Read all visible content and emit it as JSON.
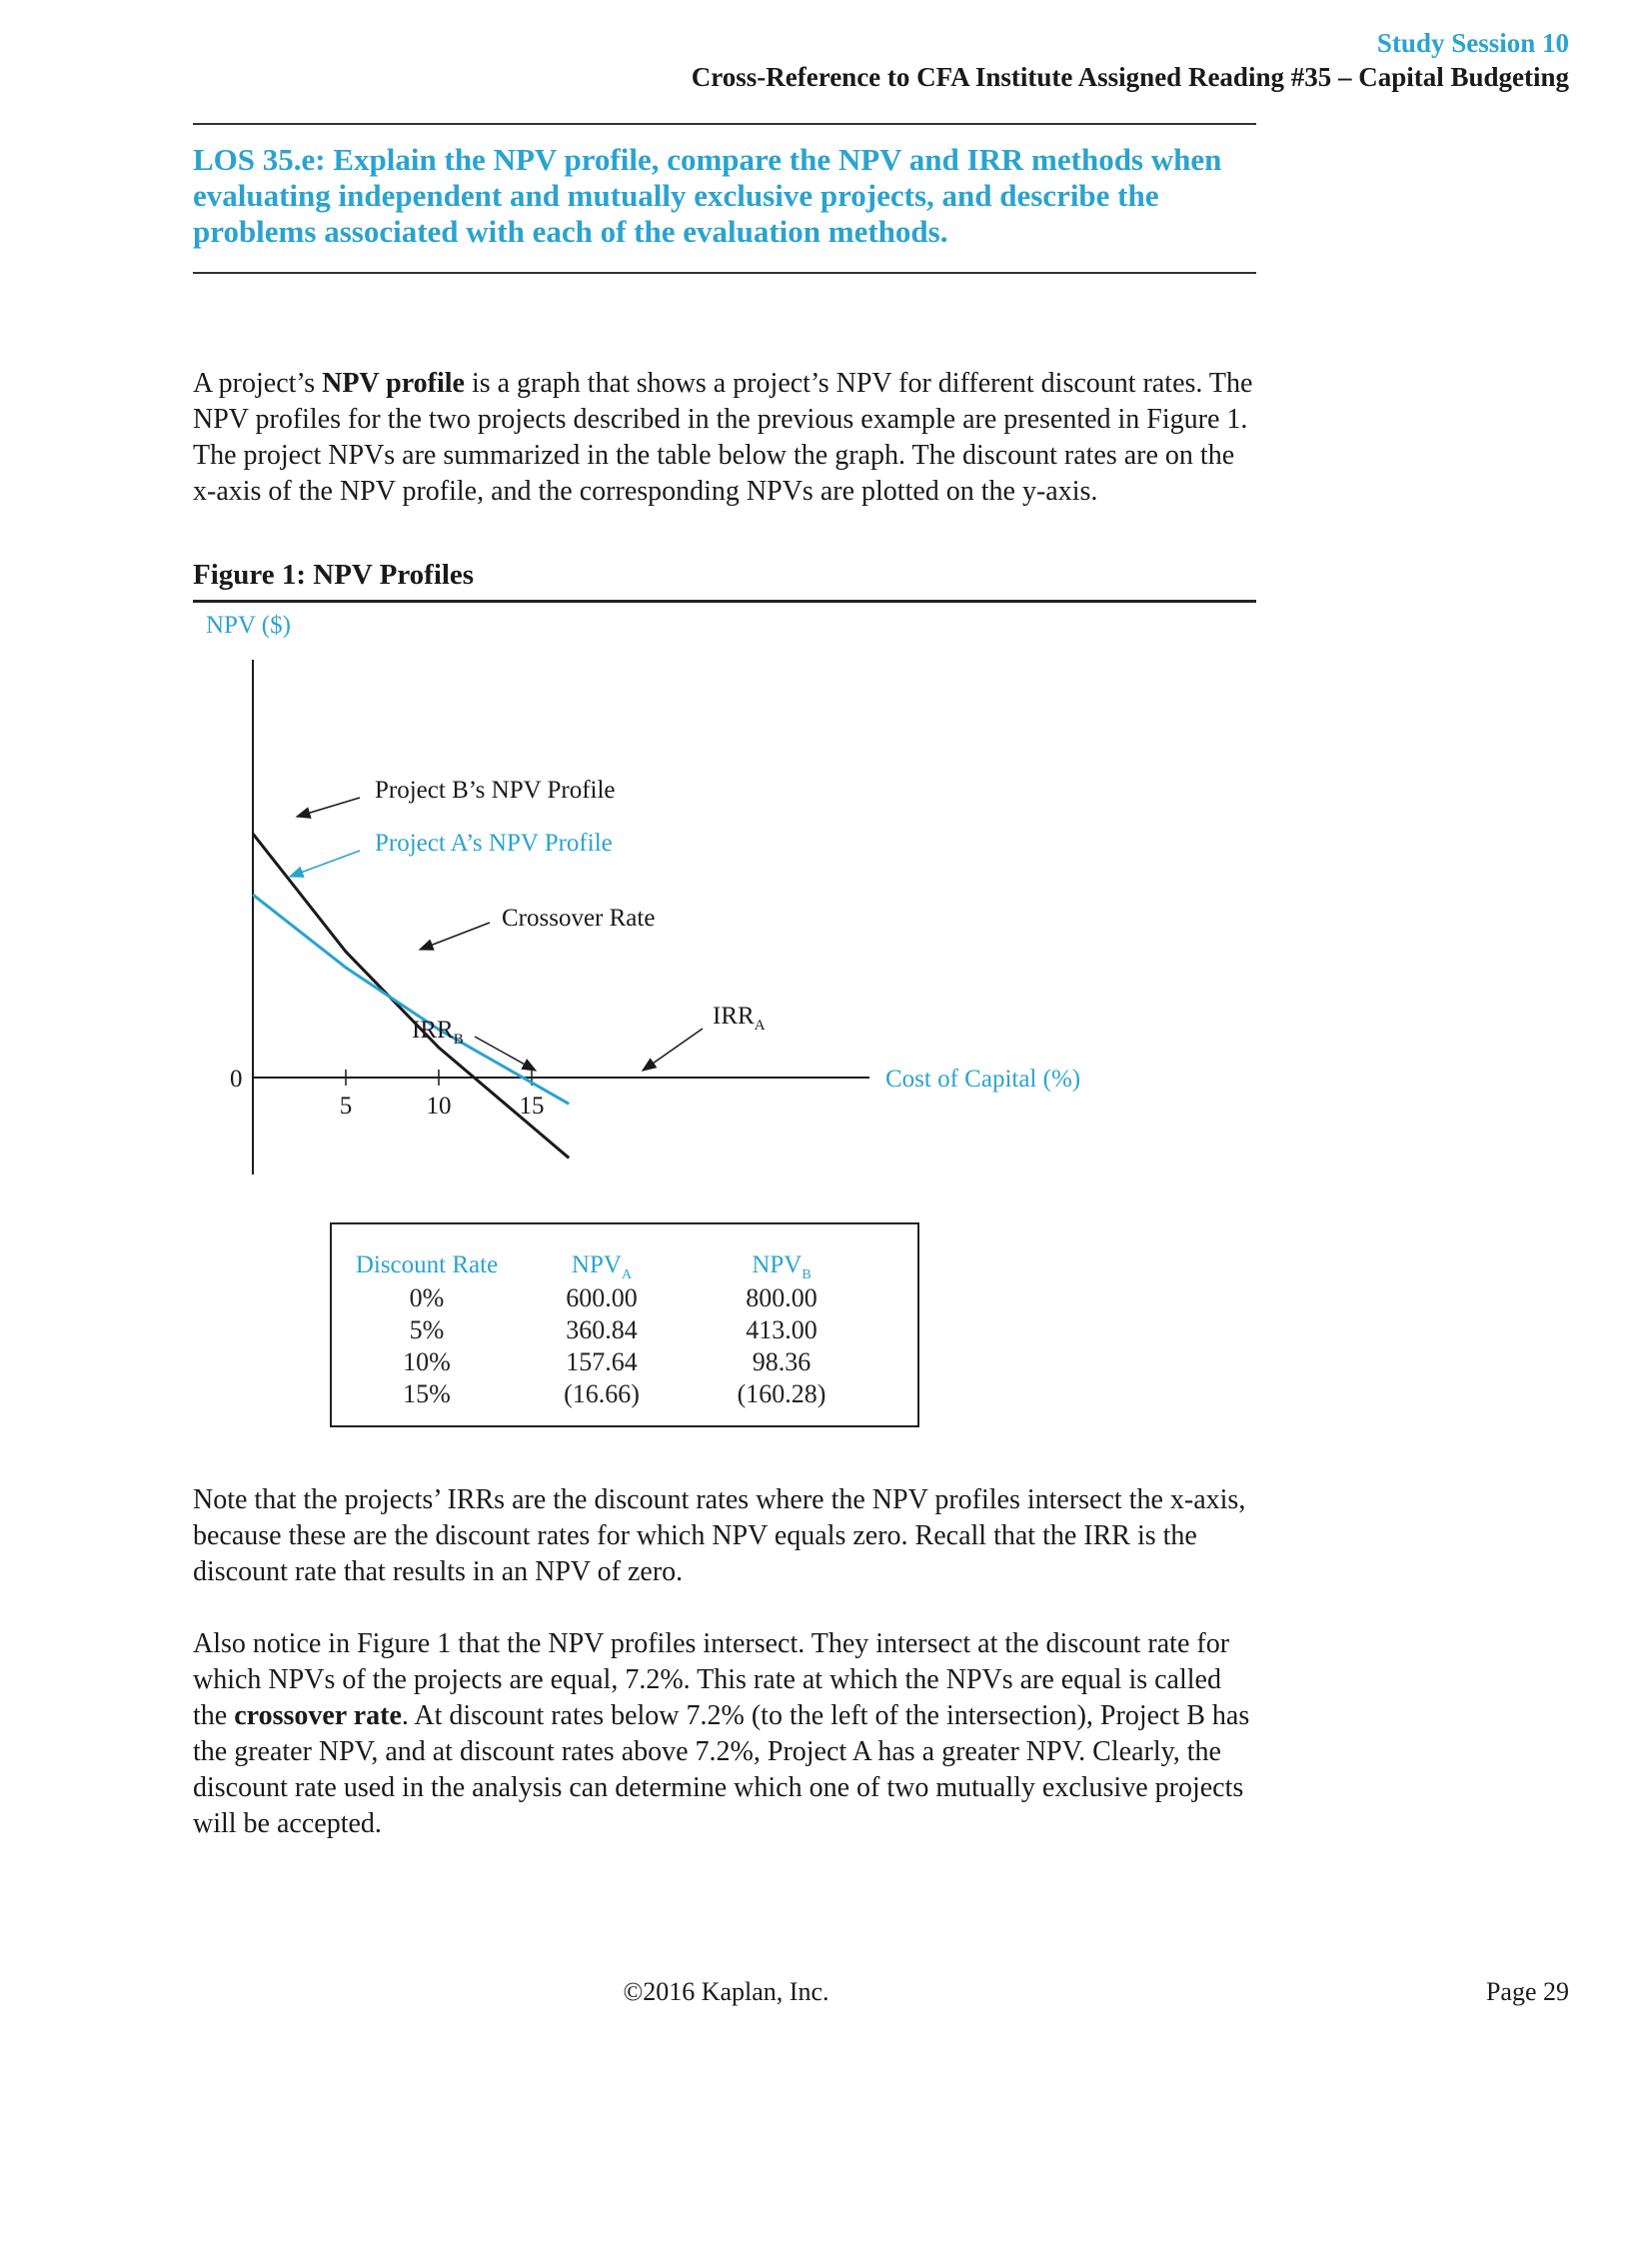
{
  "header": {
    "session": "Study Session 10",
    "reference": "Cross-Reference to CFA Institute Assigned Reading #35 – Capital Budgeting"
  },
  "los": "LOS 35.e: Explain the NPV profile, compare the NPV and IRR methods when evaluating independent and mutually exclusive projects, and describe the problems associated with each of the evaluation methods.",
  "intro": {
    "p1_a": "A project’s ",
    "p1_bold": "NPV profile",
    "p1_b": " is a graph that shows a project’s NPV for different discount rates. The NPV profiles for the two projects described in the previous example are presented in Figure 1. The project NPVs are summarized in the table below the graph. The discount rates are on the x-axis of the NPV profile, and the corresponding NPVs are plotted on the y-axis."
  },
  "figure": {
    "title": "Figure 1: NPV Profiles"
  },
  "chart_data": {
    "type": "line",
    "ylabel": "NPV ($)",
    "xlabel": "Cost of Capital (%)",
    "origin_label": "0",
    "x_ticks": [
      "5",
      "10",
      "15"
    ],
    "series": [
      {
        "name": "Project B’s NPV Profile",
        "x": [
          0,
          5,
          10,
          15
        ],
        "y": [
          800.0,
          413.0,
          98.36,
          -160.28
        ],
        "color": "#1a1a1a"
      },
      {
        "name": "Project A’s NPV Profile",
        "x": [
          0,
          5,
          10,
          15
        ],
        "y": [
          600.0,
          360.84,
          157.64,
          -16.66
        ],
        "color": "#2aa3cf"
      }
    ],
    "annotations": {
      "crossover": "Crossover Rate",
      "irr_b": "IRR",
      "irr_b_sub": "B",
      "irr_a": "IRR",
      "irr_a_sub": "A"
    }
  },
  "table": {
    "headers": {
      "rate": "Discount Rate",
      "npv_a": "NPV",
      "npv_a_sub": "A",
      "npv_b": "NPV",
      "npv_b_sub": "B"
    },
    "rows": [
      {
        "rate": "0%",
        "a": "600.00",
        "b": "800.00"
      },
      {
        "rate": "5%",
        "a": "360.84",
        "b": "413.00"
      },
      {
        "rate": "10%",
        "a": "157.64",
        "b": "98.36"
      },
      {
        "rate": "15%",
        "a": "(16.66)",
        "b": "(160.28)"
      }
    ]
  },
  "notes": {
    "p2": "Note that the projects’ IRRs are the discount rates where the NPV profiles intersect the x-axis, because these are the discount rates for which NPV equals zero. Recall that the IRR is the discount rate that results in an NPV of zero.",
    "p3_a": "Also notice in Figure 1 that the NPV profiles intersect. They intersect at the discount rate for which NPVs of the projects are equal, 7.2%. This rate at which the NPVs are equal is called the ",
    "p3_bold": "crossover rate",
    "p3_b": ". At discount rates below 7.2% (to the left of the intersection), Project B has the greater NPV, and at discount rates above 7.2%, Project A has a greater NPV. Clearly, the discount rate used in the analysis can determine which one of two mutually exclusive projects will be accepted."
  },
  "footer": {
    "copyright": "©2016 Kaplan, Inc.",
    "page": "Page 29"
  }
}
